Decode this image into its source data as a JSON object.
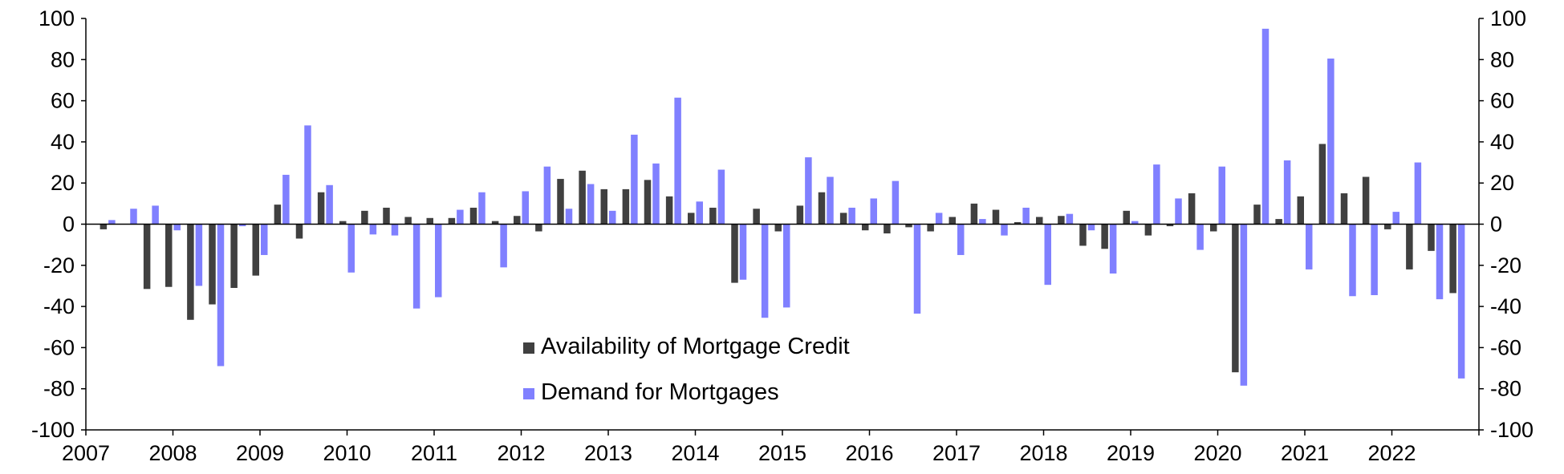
{
  "chart_data": {
    "type": "bar",
    "title": "",
    "xlabel": "",
    "ylabel": "",
    "ylim": [
      -100,
      100
    ],
    "y_ticks": [
      100,
      80,
      60,
      40,
      20,
      0,
      -20,
      -40,
      -60,
      -80,
      -100
    ],
    "y_tick_labels": [
      "100",
      "80",
      "60",
      "40",
      "20",
      "0",
      "-20",
      "-40",
      "-60",
      "-80",
      "-100"
    ],
    "x_range": [
      2007.0,
      2023.0
    ],
    "x_tick_labels": [
      "2007",
      "2008",
      "2009",
      "2010",
      "2011",
      "2012",
      "2013",
      "2014",
      "2015",
      "2016",
      "2017",
      "2018",
      "2019",
      "2020",
      "2021",
      "2022"
    ],
    "grid": false,
    "legend_position": "center-bottom",
    "categories": [
      "2007 Q2",
      "2007 Q3",
      "2007 Q4",
      "2008 Q1",
      "2008 Q2",
      "2008 Q3",
      "2008 Q4",
      "2009 Q1",
      "2009 Q2",
      "2009 Q3",
      "2009 Q4",
      "2010 Q1",
      "2010 Q2",
      "2010 Q3",
      "2010 Q4",
      "2011 Q1",
      "2011 Q2",
      "2011 Q3",
      "2011 Q4",
      "2012 Q1",
      "2012 Q2",
      "2012 Q3",
      "2012 Q4",
      "2013 Q1",
      "2013 Q2",
      "2013 Q3",
      "2013 Q4",
      "2014 Q1",
      "2014 Q2",
      "2014 Q3",
      "2014 Q4",
      "2015 Q1",
      "2015 Q2",
      "2015 Q3",
      "2015 Q4",
      "2016 Q1",
      "2016 Q2",
      "2016 Q3",
      "2016 Q4",
      "2017 Q1",
      "2017 Q2",
      "2017 Q3",
      "2017 Q4",
      "2018 Q1",
      "2018 Q2",
      "2018 Q3",
      "2018 Q4",
      "2019 Q1",
      "2019 Q2",
      "2019 Q3",
      "2019 Q4",
      "2020 Q1",
      "2020 Q2",
      "2020 Q3",
      "2020 Q4",
      "2021 Q1",
      "2021 Q2",
      "2021 Q3",
      "2021 Q4",
      "2022 Q1",
      "2022 Q2",
      "2022 Q3",
      "2022 Q4"
    ],
    "x": [
      2007.25,
      2007.5,
      2007.75,
      2008.0,
      2008.25,
      2008.5,
      2008.75,
      2009.0,
      2009.25,
      2009.5,
      2009.75,
      2010.0,
      2010.25,
      2010.5,
      2010.75,
      2011.0,
      2011.25,
      2011.5,
      2011.75,
      2012.0,
      2012.25,
      2012.5,
      2012.75,
      2013.0,
      2013.25,
      2013.5,
      2013.75,
      2014.0,
      2014.25,
      2014.5,
      2014.75,
      2015.0,
      2015.25,
      2015.5,
      2015.75,
      2016.0,
      2016.25,
      2016.5,
      2016.75,
      2017.0,
      2017.25,
      2017.5,
      2017.75,
      2018.0,
      2018.25,
      2018.5,
      2018.75,
      2019.0,
      2019.25,
      2019.5,
      2019.75,
      2020.0,
      2020.25,
      2020.5,
      2020.75,
      2021.0,
      2021.25,
      2021.5,
      2021.75,
      2022.0,
      2022.25,
      2022.5,
      2022.75
    ],
    "series": [
      {
        "name": "Availability of Mortgage Credit",
        "color": "#404040",
        "values": [
          -2.5,
          0,
          -31.5,
          -30.5,
          -46.5,
          -39,
          -31,
          -25,
          9.5,
          -7,
          15.5,
          1.5,
          6.5,
          8,
          3.5,
          3,
          3,
          8,
          1.5,
          4,
          -3.5,
          22,
          26,
          17,
          17,
          21.5,
          13.5,
          5.5,
          8,
          -28.5,
          7.5,
          -3.5,
          9,
          15.5,
          5.5,
          -3,
          -4.5,
          -1.5,
          -3.5,
          3.5,
          10,
          7,
          1,
          3.5,
          4,
          -10.5,
          -12,
          6.5,
          -5.5,
          -1,
          15,
          -3.5,
          -72,
          9.5,
          2.5,
          13.5,
          39,
          15,
          23,
          -2.5,
          -22,
          -13,
          -33.5
        ]
      },
      {
        "name": "Demand for Mortgages",
        "color": "#8080ff",
        "values": [
          2,
          7.5,
          9,
          -3,
          -30,
          -69,
          -1,
          -15,
          24,
          48,
          19,
          -23.5,
          -5,
          -5.5,
          -41,
          -35.5,
          7,
          15.5,
          -21,
          16,
          28,
          7.5,
          19.5,
          6.5,
          43.5,
          29.5,
          61.5,
          11,
          26.5,
          -27,
          -45.5,
          -40.5,
          32.5,
          23,
          8,
          12.5,
          21,
          -43.5,
          5.5,
          -15,
          2.5,
          -5.5,
          8,
          -29.5,
          5,
          -3,
          -24,
          1.5,
          29,
          12.5,
          -12.5,
          28,
          -78.5,
          95,
          31,
          -22,
          80.5,
          -35,
          -34.5,
          6,
          30,
          -36.5,
          -75
        ]
      }
    ]
  }
}
